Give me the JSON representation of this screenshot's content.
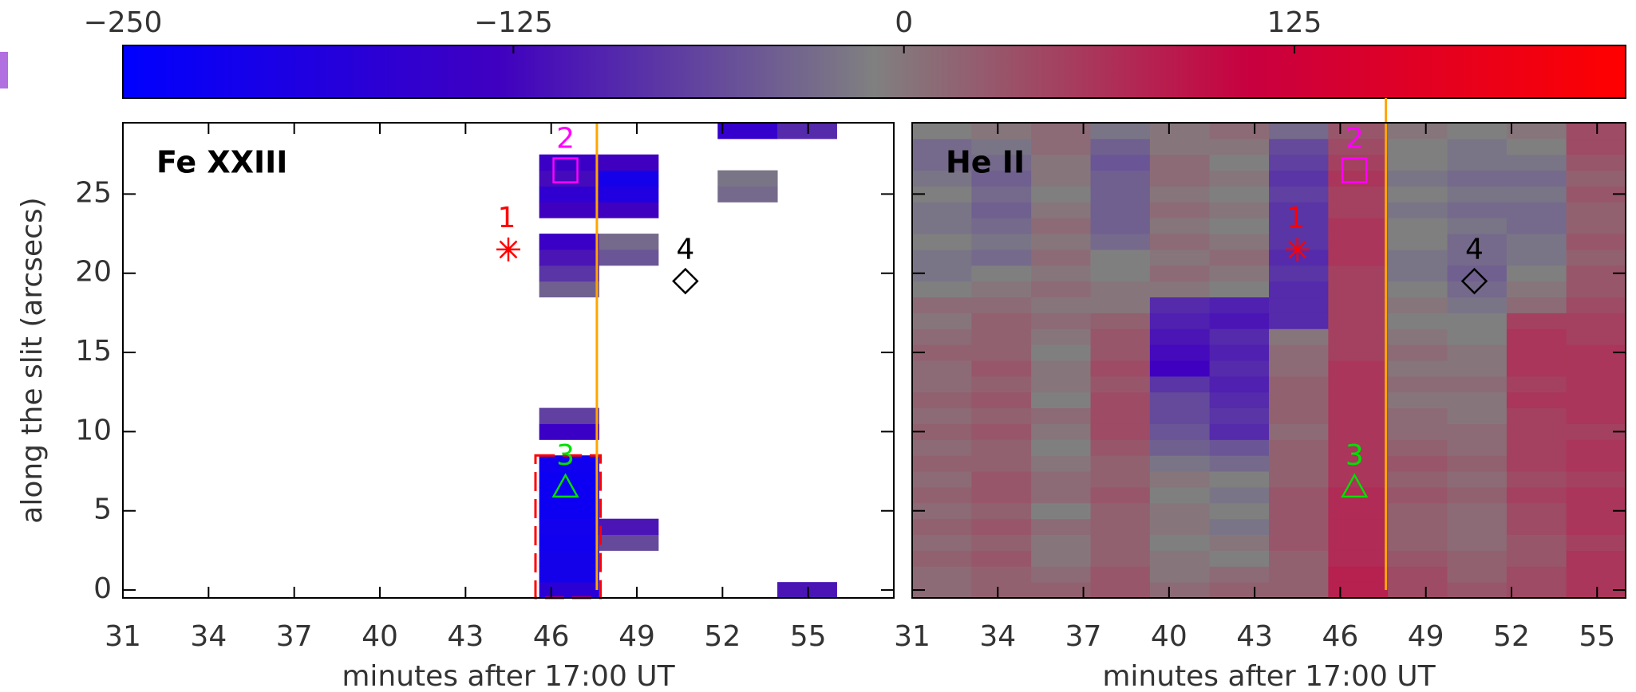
{
  "colorbar": {
    "clim": [
      -250,
      231
    ],
    "colormap": [
      "#0000ff",
      "#4000c0",
      "#808080",
      "#c80040",
      "#ff0000"
    ],
    "ticks": [
      {
        "value": -250,
        "label": "−250"
      },
      {
        "value": -125,
        "label": "−125"
      },
      0,
      125
    ]
  },
  "chart_data": [
    {
      "type": "heatmap",
      "title": "Fe XXIII",
      "xlabel": "minutes after 17:00 UT",
      "ylabel": "along the slit (arcsecs)",
      "xlim": [
        31,
        58
      ],
      "ylim": [
        -0.5,
        29.5
      ],
      "xticks": [
        31,
        34,
        37,
        40,
        43,
        46,
        49,
        52,
        55
      ],
      "yticks": [
        0,
        5,
        10,
        15,
        20,
        25
      ],
      "xbins": [
        31,
        33.08,
        35.17,
        37.25,
        39.33,
        41.42,
        43.5,
        45.58,
        47.67,
        49.75,
        51.83,
        53.92,
        56
      ],
      "ybins": [
        -0.5,
        0.5,
        1.5,
        2.5,
        3.5,
        4.5,
        5.5,
        6.5,
        7.5,
        8.5,
        9.5,
        10.5,
        11.5,
        12.5,
        13.5,
        14.5,
        15.5,
        16.5,
        17.5,
        18.5,
        19.5,
        20.5,
        21.5,
        22.5,
        23.5,
        24.5,
        25.5,
        26.5,
        27.5,
        28.5,
        29.5
      ],
      "values": [
        [
          null,
          null,
          null,
          null,
          null,
          null,
          null,
          -170,
          null,
          null,
          null,
          -110
        ],
        [
          null,
          null,
          null,
          null,
          null,
          null,
          null,
          -210,
          null,
          null,
          null,
          null
        ],
        [
          null,
          null,
          null,
          null,
          null,
          null,
          null,
          -210,
          null,
          null,
          null,
          null
        ],
        [
          null,
          null,
          null,
          null,
          null,
          null,
          null,
          -220,
          -60,
          null,
          null,
          null
        ],
        [
          null,
          null,
          null,
          null,
          null,
          null,
          null,
          -215,
          -110,
          null,
          null,
          null
        ],
        [
          null,
          null,
          null,
          null,
          null,
          null,
          null,
          -225,
          null,
          null,
          null,
          null
        ],
        [
          null,
          null,
          null,
          null,
          null,
          null,
          null,
          -225,
          null,
          null,
          null,
          null
        ],
        [
          null,
          null,
          null,
          null,
          null,
          null,
          null,
          -225,
          null,
          null,
          null,
          null
        ],
        [
          null,
          null,
          null,
          null,
          null,
          null,
          null,
          -220,
          null,
          null,
          null,
          null
        ],
        [
          null,
          null,
          null,
          null,
          null,
          null,
          null,
          null,
          null,
          null,
          null,
          null
        ],
        [
          null,
          null,
          null,
          null,
          null,
          null,
          null,
          -140,
          null,
          null,
          null,
          null
        ],
        [
          null,
          null,
          null,
          null,
          null,
          null,
          null,
          -70,
          null,
          null,
          null,
          null
        ],
        [
          null,
          null,
          null,
          null,
          null,
          null,
          null,
          null,
          null,
          null,
          null,
          null
        ],
        [
          null,
          null,
          null,
          null,
          null,
          null,
          null,
          null,
          null,
          null,
          null,
          null
        ],
        [
          null,
          null,
          null,
          null,
          null,
          null,
          null,
          null,
          null,
          null,
          null,
          null
        ],
        [
          null,
          null,
          null,
          null,
          null,
          null,
          null,
          null,
          null,
          null,
          null,
          null
        ],
        [
          null,
          null,
          null,
          null,
          null,
          null,
          null,
          null,
          null,
          null,
          null,
          null
        ],
        [
          null,
          null,
          null,
          null,
          null,
          null,
          null,
          null,
          null,
          null,
          null,
          null
        ],
        [
          null,
          null,
          null,
          null,
          null,
          null,
          null,
          null,
          null,
          null,
          null,
          null
        ],
        [
          null,
          null,
          null,
          null,
          null,
          null,
          null,
          -40,
          null,
          null,
          null,
          null
        ],
        [
          null,
          null,
          null,
          null,
          null,
          null,
          null,
          -80,
          null,
          null,
          null,
          null
        ],
        [
          null,
          null,
          null,
          null,
          null,
          null,
          null,
          -110,
          -50,
          null,
          null,
          null
        ],
        [
          null,
          null,
          null,
          null,
          null,
          null,
          null,
          -140,
          -30,
          null,
          null,
          null
        ],
        [
          null,
          null,
          null,
          null,
          null,
          null,
          null,
          null,
          null,
          null,
          null,
          null
        ],
        [
          null,
          null,
          null,
          null,
          null,
          null,
          null,
          -130,
          -130,
          null,
          null,
          null
        ],
        [
          null,
          null,
          null,
          null,
          null,
          null,
          null,
          -160,
          -190,
          null,
          -30,
          null
        ],
        [
          null,
          null,
          null,
          null,
          null,
          null,
          null,
          -120,
          -210,
          null,
          -20,
          null
        ],
        [
          null,
          null,
          null,
          null,
          null,
          null,
          null,
          -140,
          -130,
          null,
          null,
          null
        ],
        [
          null,
          null,
          null,
          null,
          null,
          null,
          null,
          null,
          null,
          null,
          null,
          null
        ],
        [
          null,
          null,
          null,
          null,
          null,
          null,
          null,
          null,
          null,
          null,
          -150,
          -90
        ]
      ],
      "markers": [
        {
          "label": "1",
          "symbol": "asterisk",
          "x": 44.5,
          "y": 21.5,
          "color": "#ff0000"
        },
        {
          "label": "2",
          "symbol": "square",
          "x": 46.5,
          "y": 26.5,
          "color": "#ff00ff"
        },
        {
          "label": "3",
          "symbol": "triangle",
          "x": 46.5,
          "y": 6.5,
          "color": "#00e000"
        },
        {
          "label": "4",
          "symbol": "diamond",
          "x": 50.7,
          "y": 19.5,
          "color": "#000000"
        }
      ],
      "vline": {
        "x": 47.6,
        "color": "#ffa500"
      },
      "box": {
        "x": [
          45.45,
          47.73
        ],
        "y": [
          -0.5,
          8.5
        ],
        "color": "#ff0000"
      }
    },
    {
      "type": "heatmap",
      "title": "He II",
      "xlabel": "minutes after 17:00 UT",
      "xlim": [
        31,
        56
      ],
      "ylim": [
        -0.5,
        29.5
      ],
      "xticks": [
        31,
        34,
        37,
        40,
        43,
        46,
        49,
        52,
        55
      ],
      "yticks": [
        0,
        5,
        10,
        15,
        20,
        25
      ],
      "xbins": [
        31,
        33.08,
        35.17,
        37.25,
        39.33,
        41.42,
        43.5,
        45.58,
        47.67,
        49.75,
        51.83,
        53.92,
        56
      ],
      "ybins": [
        -0.5,
        0.5,
        1.5,
        2.5,
        3.5,
        4.5,
        5.5,
        6.5,
        7.5,
        8.5,
        9.5,
        10.5,
        11.5,
        12.5,
        13.5,
        14.5,
        15.5,
        16.5,
        17.5,
        18.5,
        19.5,
        20.5,
        21.5,
        22.5,
        23.5,
        24.5,
        25.5,
        26.5,
        27.5,
        28.5,
        29.5
      ],
      "values": [
        [
          10,
          20,
          20,
          30,
          10,
          20,
          20,
          80,
          40,
          30,
          40,
          60
        ],
        [
          10,
          20,
          10,
          30,
          0,
          10,
          20,
          80,
          40,
          20,
          40,
          60
        ],
        [
          20,
          30,
          0,
          20,
          0,
          -10,
          20,
          70,
          30,
          20,
          30,
          60
        ],
        [
          10,
          20,
          0,
          20,
          -10,
          0,
          30,
          70,
          20,
          10,
          30,
          50
        ],
        [
          20,
          30,
          10,
          20,
          0,
          -20,
          30,
          70,
          20,
          10,
          40,
          60
        ],
        [
          10,
          20,
          -10,
          20,
          0,
          -10,
          30,
          70,
          20,
          10,
          40,
          60
        ],
        [
          20,
          30,
          10,
          30,
          -10,
          -20,
          30,
          70,
          30,
          20,
          50,
          60
        ],
        [
          10,
          30,
          10,
          20,
          0,
          -10,
          20,
          60,
          20,
          10,
          40,
          50
        ],
        [
          20,
          20,
          0,
          20,
          -20,
          -30,
          20,
          60,
          30,
          20,
          50,
          60
        ],
        [
          10,
          20,
          -10,
          30,
          -40,
          -50,
          20,
          60,
          20,
          10,
          50,
          60
        ],
        [
          20,
          30,
          0,
          40,
          -50,
          -90,
          10,
          60,
          10,
          10,
          50,
          50
        ],
        [
          10,
          20,
          10,
          40,
          -60,
          -80,
          20,
          60,
          10,
          0,
          50,
          60
        ],
        [
          20,
          30,
          -10,
          40,
          -60,
          -90,
          20,
          60,
          0,
          0,
          60,
          60
        ],
        [
          10,
          20,
          0,
          30,
          -80,
          -100,
          20,
          60,
          10,
          10,
          50,
          60
        ],
        [
          10,
          30,
          0,
          40,
          -130,
          -90,
          10,
          60,
          0,
          0,
          60,
          60
        ],
        [
          20,
          20,
          -10,
          30,
          -120,
          -100,
          10,
          50,
          10,
          0,
          60,
          60
        ],
        [
          10,
          20,
          0,
          30,
          -110,
          -90,
          0,
          50,
          0,
          -10,
          60,
          50
        ],
        [
          0,
          20,
          10,
          20,
          -100,
          -110,
          -90,
          50,
          -10,
          -10,
          50,
          50
        ],
        [
          10,
          10,
          0,
          0,
          -90,
          -100,
          -90,
          50,
          0,
          -20,
          10,
          40
        ],
        [
          -10,
          0,
          10,
          0,
          0,
          -10,
          -90,
          50,
          -10,
          -30,
          0,
          30
        ],
        [
          -20,
          -10,
          0,
          -10,
          10,
          0,
          -80,
          50,
          -20,
          -40,
          -10,
          30
        ],
        [
          -20,
          -30,
          10,
          -10,
          0,
          10,
          -90,
          60,
          -20,
          -30,
          -20,
          20
        ],
        [
          -10,
          -20,
          0,
          -30,
          10,
          0,
          -80,
          60,
          -10,
          -30,
          -20,
          30
        ],
        [
          -20,
          -30,
          10,
          -40,
          0,
          -10,
          -80,
          60,
          -10,
          -20,
          -30,
          20
        ],
        [
          -20,
          -40,
          0,
          -40,
          10,
          0,
          -80,
          50,
          -20,
          -30,
          -30,
          20
        ],
        [
          -10,
          -30,
          -10,
          -40,
          0,
          -10,
          -70,
          50,
          -10,
          -20,
          -20,
          30
        ],
        [
          -20,
          -40,
          0,
          -40,
          10,
          0,
          -80,
          60,
          -20,
          -30,
          -30,
          20
        ],
        [
          -30,
          -30,
          0,
          -50,
          10,
          -10,
          -70,
          50,
          -10,
          -20,
          -20,
          30
        ],
        [
          -30,
          -20,
          10,
          -40,
          0,
          0,
          -60,
          40,
          -10,
          -20,
          -10,
          40
        ],
        [
          -10,
          0,
          10,
          -20,
          0,
          10,
          -30,
          30,
          0,
          -10,
          0,
          40
        ]
      ],
      "markers": [
        {
          "label": "1",
          "symbol": "asterisk",
          "x": 44.5,
          "y": 21.5,
          "color": "#ff0000"
        },
        {
          "label": "2",
          "symbol": "square",
          "x": 46.5,
          "y": 26.5,
          "color": "#ff00ff"
        },
        {
          "label": "3",
          "symbol": "triangle",
          "x": 46.5,
          "y": 6.5,
          "color": "#00e000"
        },
        {
          "label": "4",
          "symbol": "diamond",
          "x": 50.7,
          "y": 19.5,
          "color": "#000000"
        }
      ],
      "vline": {
        "x": 47.6,
        "color": "#ffa500"
      }
    }
  ]
}
